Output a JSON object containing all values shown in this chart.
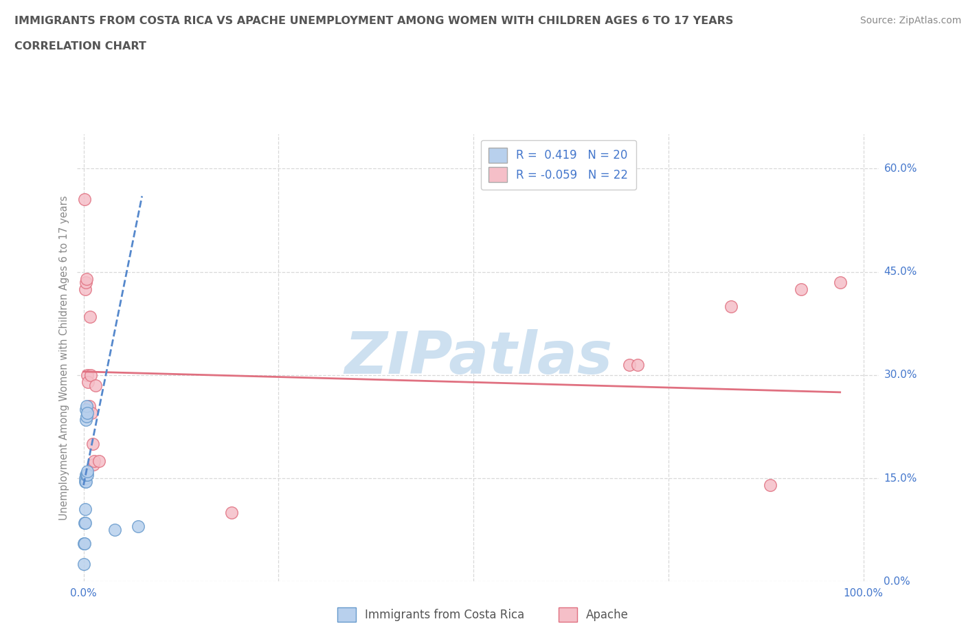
{
  "title_line1": "IMMIGRANTS FROM COSTA RICA VS APACHE UNEMPLOYMENT AMONG WOMEN WITH CHILDREN AGES 6 TO 17 YEARS",
  "title_line2": "CORRELATION CHART",
  "source": "Source: ZipAtlas.com",
  "ylabel": "Unemployment Among Women with Children Ages 6 to 17 years",
  "xlim": [
    -0.008,
    1.02
  ],
  "ylim": [
    0.0,
    0.65
  ],
  "yticks": [
    0.0,
    0.15,
    0.3,
    0.45,
    0.6
  ],
  "ytick_labels": [
    "0.0%",
    "15.0%",
    "30.0%",
    "45.0%",
    "60.0%"
  ],
  "xticks": [
    0.0,
    0.25,
    0.5,
    0.75,
    1.0
  ],
  "xtick_labels": [
    "0.0%",
    "",
    "",
    "",
    "100.0%"
  ],
  "background_color": "#ffffff",
  "grid_color": "#d8d8d8",
  "grid_style": "--",
  "watermark_text": "ZIPatlas",
  "watermark_color": "#cde0f0",
  "series": [
    {
      "name": "Immigrants from Costa Rica",
      "R": 0.419,
      "N": 20,
      "fill_color": "#b8d0ed",
      "edge_color": "#6699cc",
      "trend_color": "#5588cc",
      "trend_style": "--",
      "points_x": [
        0.0,
        0.0,
        0.001,
        0.001,
        0.002,
        0.002,
        0.002,
        0.002,
        0.003,
        0.003,
        0.003,
        0.003,
        0.004,
        0.004,
        0.004,
        0.005,
        0.005,
        0.005,
        0.04,
        0.07
      ],
      "points_y": [
        0.025,
        0.055,
        0.055,
        0.085,
        0.085,
        0.105,
        0.145,
        0.15,
        0.145,
        0.155,
        0.235,
        0.25,
        0.24,
        0.255,
        0.155,
        0.155,
        0.16,
        0.245,
        0.075,
        0.08
      ],
      "trend_x0": 0.0,
      "trend_x1": 0.075,
      "trend_y0": 0.14,
      "trend_y1": 0.56
    },
    {
      "name": "Apache",
      "R": -0.059,
      "N": 22,
      "fill_color": "#f5bfc8",
      "edge_color": "#e07080",
      "trend_color": "#e07080",
      "trend_style": "-",
      "points_x": [
        0.001,
        0.002,
        0.003,
        0.004,
        0.005,
        0.006,
        0.007,
        0.008,
        0.009,
        0.01,
        0.012,
        0.013,
        0.014,
        0.015,
        0.02,
        0.19,
        0.7,
        0.71,
        0.83,
        0.88,
        0.92,
        0.97
      ],
      "points_y": [
        0.555,
        0.425,
        0.435,
        0.44,
        0.3,
        0.29,
        0.255,
        0.385,
        0.3,
        0.245,
        0.2,
        0.17,
        0.175,
        0.285,
        0.175,
        0.1,
        0.315,
        0.315,
        0.4,
        0.14,
        0.425,
        0.435
      ],
      "trend_x0": 0.0,
      "trend_x1": 0.97,
      "trend_y0": 0.305,
      "trend_y1": 0.275
    }
  ],
  "title_color": "#555555",
  "tick_color": "#4477cc",
  "source_color": "#888888",
  "ylabel_color": "#888888",
  "legend_r_color": "#4477cc"
}
